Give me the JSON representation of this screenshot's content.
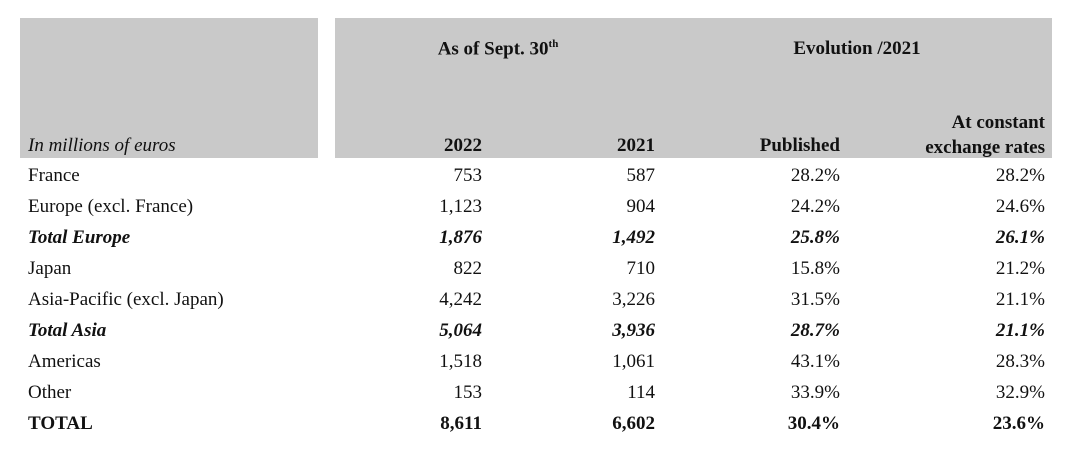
{
  "header": {
    "label": "In millions of euros",
    "group1": {
      "text": "As of Sept. 30",
      "sup": "th"
    },
    "group2": "Evolution /2021",
    "columns": [
      "2022",
      "2021",
      "Published",
      "At constant exchange rates"
    ]
  },
  "rows": [
    {
      "label": "France",
      "values": [
        "753",
        "587",
        "28.2%",
        "28.2%"
      ]
    },
    {
      "label": "Europe (excl. France)",
      "values": [
        "1,123",
        "904",
        "24.2%",
        "24.6%"
      ]
    },
    {
      "label": "Total Europe",
      "values": [
        "1,876",
        "1,492",
        "25.8%",
        "26.1%"
      ]
    },
    {
      "label": "Japan",
      "values": [
        "822",
        "710",
        "15.8%",
        "21.2%"
      ]
    },
    {
      "label": "Asia-Pacific (excl. Japan)",
      "values": [
        "4,242",
        "3,226",
        "31.5%",
        "21.1%"
      ]
    },
    {
      "label": "Total Asia",
      "values": [
        "5,064",
        "3,936",
        "28.7%",
        "21.1%"
      ]
    },
    {
      "label": "Americas",
      "values": [
        "1,518",
        "1,061",
        "43.1%",
        "28.3%"
      ]
    },
    {
      "label": "Other",
      "values": [
        "153",
        "114",
        "33.9%",
        "32.9%"
      ]
    },
    {
      "label": "TOTAL",
      "values": [
        "8,611",
        "6,602",
        "30.4%",
        "23.6%"
      ]
    }
  ]
}
